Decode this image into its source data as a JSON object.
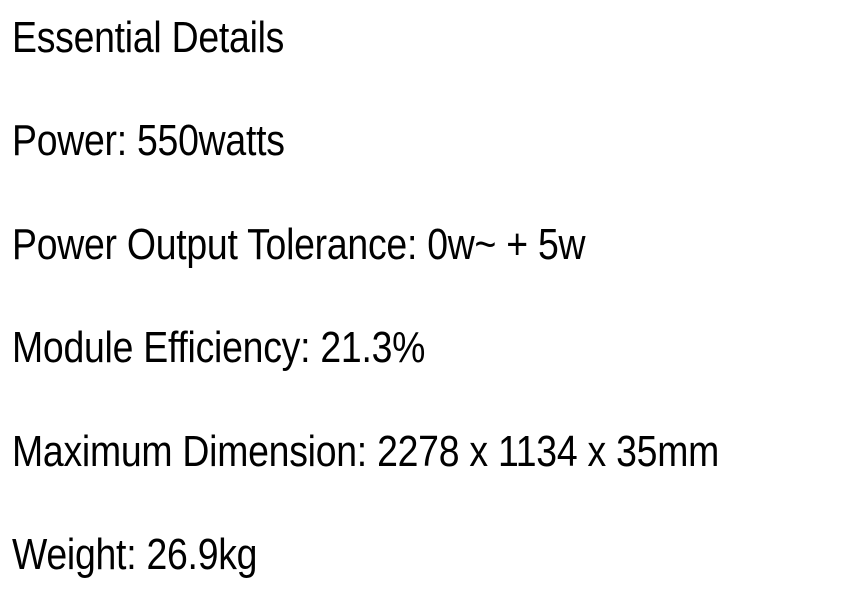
{
  "document": {
    "heading": "Essential Details",
    "lines": [
      "Power: 550watts",
      "Power Output Tolerance: 0w~ + 5w",
      "Module Efficiency: 21.3%",
      "Maximum Dimension: 2278 x 1134 x 35mm",
      "Weight: 26.9kg"
    ]
  },
  "colors": {
    "background": "#ffffff",
    "text": "#000000"
  }
}
